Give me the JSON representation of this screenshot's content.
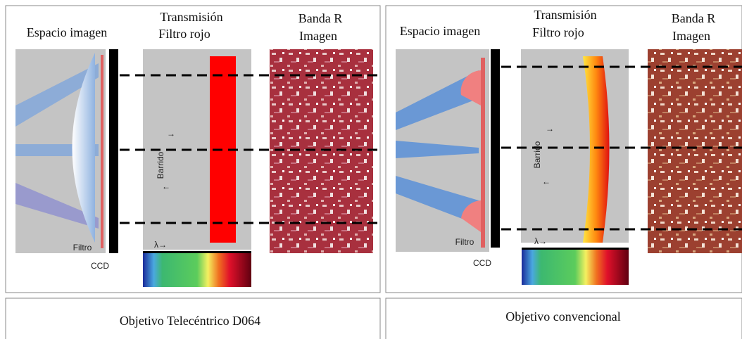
{
  "panels": [
    {
      "image_space": "Espacio imagen",
      "transmission": "Transmisión",
      "filter_name": "Filtro rojo",
      "band": "Banda R",
      "image": "Imagen",
      "filter": "Filtro",
      "ccd": "CCD",
      "scan": "Barrido",
      "arrow_right": "→",
      "arrow_left": "←",
      "lambda": "λ→",
      "caption": "Objetivo Telecéntrico D064"
    },
    {
      "image_space": "Espacio imagen",
      "transmission": "Transmisión",
      "filter_name": "Filtro rojo",
      "band": "Banda R",
      "image": "Imagen",
      "filter": "Filtro",
      "ccd": "CCD",
      "scan": "Barrido",
      "arrow_right": "→",
      "arrow_left": "←",
      "lambda": "λ→",
      "caption": "Objetivo convencional"
    }
  ]
}
